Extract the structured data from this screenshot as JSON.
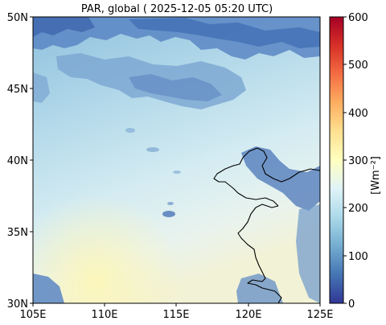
{
  "title": "PAR, global ( 2025-12-05 05:20 UTC)",
  "map": {
    "lon_range": [
      105,
      125
    ],
    "lat_range": [
      30,
      50
    ],
    "x_ticks": [
      "105E",
      "110E",
      "115E",
      "120E",
      "125E"
    ],
    "y_ticks": [
      "50N",
      "45N",
      "40N",
      "35N",
      "30N"
    ],
    "coastline_color": "#000000"
  },
  "colorbar": {
    "label": "[Wm⁻²]",
    "ticks": [
      "600",
      "500",
      "400",
      "300",
      "200",
      "100",
      "0"
    ],
    "range": [
      0,
      600
    ],
    "colormap": "RdYlBu_r",
    "colors": [
      "#313695",
      "#4575b4",
      "#74add1",
      "#abd9e9",
      "#e0f3f8",
      "#ffffbf",
      "#fee090",
      "#fdae61",
      "#f46d43",
      "#d73027",
      "#a50026"
    ]
  }
}
